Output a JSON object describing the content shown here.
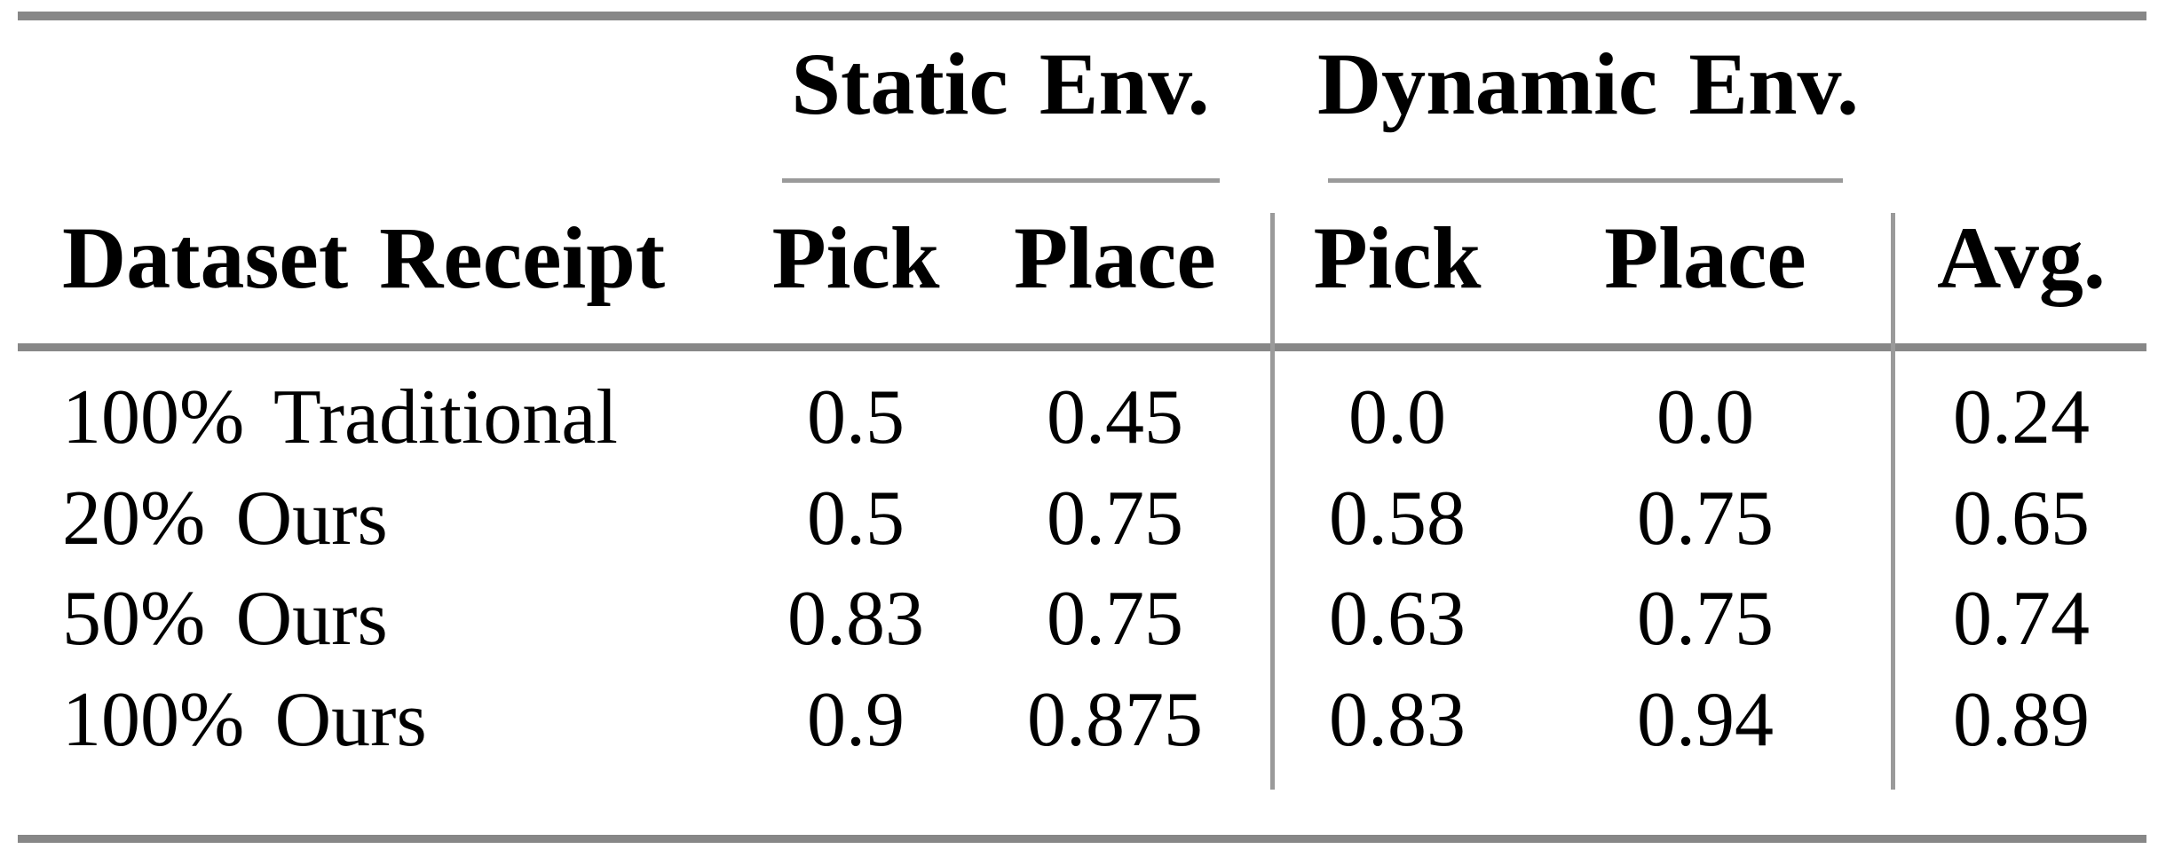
{
  "table": {
    "group_headers": [
      {
        "label": "Static Env."
      },
      {
        "label": "Dynamic Env."
      }
    ],
    "columns": [
      "Dataset Receipt",
      "Pick",
      "Place",
      "Pick",
      "Place",
      "Avg."
    ],
    "rows": [
      {
        "label": "100% Traditional",
        "values": [
          "0.5",
          "0.45",
          "0.0",
          "0.0",
          "0.24"
        ]
      },
      {
        "label": "20% Ours",
        "values": [
          "0.5",
          "0.75",
          "0.58",
          "0.75",
          "0.65"
        ]
      },
      {
        "label": "50% Ours",
        "values": [
          "0.83",
          "0.75",
          "0.63",
          "0.75",
          "0.74"
        ]
      },
      {
        "label": "100% Ours",
        "values": [
          "0.9",
          "0.875",
          "0.83",
          "0.94",
          "0.89"
        ]
      }
    ],
    "colors": {
      "background": "#ffffff",
      "text": "#000000",
      "thick_rule": "#878787",
      "thin_rule": "#9a9a9a",
      "vertical_separator": "#9a9a9a"
    }
  },
  "chart_data": {
    "type": "table",
    "title": "",
    "column_groups": [
      "Static Env.",
      "Dynamic Env."
    ],
    "columns": [
      "Dataset Receipt",
      "Static Pick",
      "Static Place",
      "Dynamic Pick",
      "Dynamic Place",
      "Avg."
    ],
    "rows": [
      [
        "100% Traditional",
        0.5,
        0.45,
        0.0,
        0.0,
        0.24
      ],
      [
        "20% Ours",
        0.5,
        0.75,
        0.58,
        0.75,
        0.65
      ],
      [
        "50% Ours",
        0.83,
        0.75,
        0.63,
        0.75,
        0.74
      ],
      [
        "100% Ours",
        0.9,
        0.875,
        0.83,
        0.94,
        0.89
      ]
    ]
  }
}
